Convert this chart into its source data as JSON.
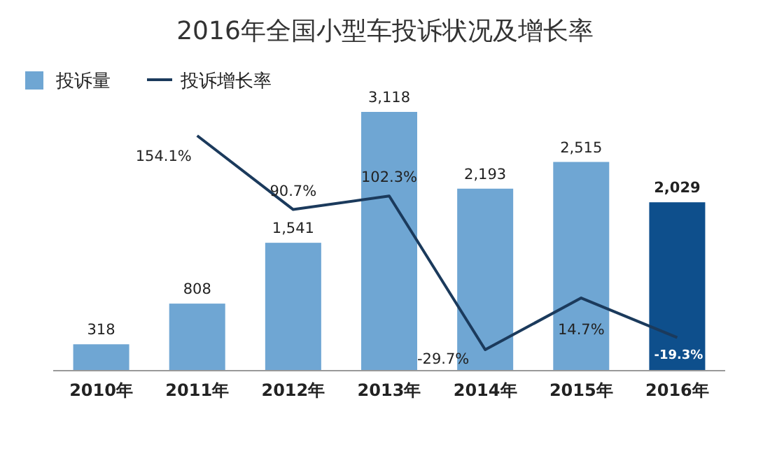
{
  "chart_data": {
    "type": "bar",
    "title": "2016年全国小型车投诉状况及增长率",
    "categories": [
      "2010年",
      "2011年",
      "2012年",
      "2013年",
      "2014年",
      "2015年",
      "2016年"
    ],
    "legend": "top left",
    "series": [
      {
        "name": "投诉量",
        "color": "#6fa6d3",
        "colors": [
          "#6fa6d3",
          "#6fa6d3",
          "#6fa6d3",
          "#6fa6d3",
          "#6fa6d3",
          "#6fa6d3",
          "#0e4f8c"
        ],
        "values": [
          318,
          808,
          1541,
          3118,
          2193,
          2515,
          2029
        ],
        "value_labels": [
          "318",
          "808",
          "1,541",
          "3,118",
          "2,193",
          "2,515",
          "2,029"
        ]
      },
      {
        "name": "投诉增长率",
        "type": "line",
        "axis": "y2",
        "color": "#1b3a5c",
        "values": [
          null,
          154.1,
          90.7,
          102.3,
          -29.7,
          14.7,
          -19.3
        ],
        "value_labels": [
          null,
          "154.1%",
          "90.7%",
          "102.3%",
          "-29.7%",
          "14.7%",
          "-19.3%"
        ]
      }
    ]
  }
}
